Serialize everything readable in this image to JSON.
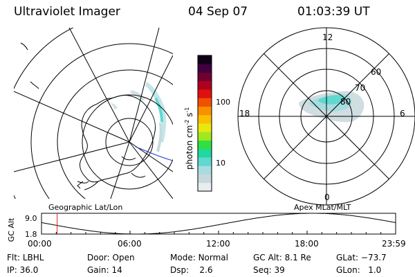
{
  "header": {
    "title": "Ultraviolet Imager",
    "date": "04 Sep 07",
    "time": "01:03:39 UT"
  },
  "colorbar": {
    "axis_label": "photon cm",
    "axis_exp1": "-2",
    "axis_mid": "s",
    "axis_exp2": "-1",
    "ticks": [
      {
        "value": 100,
        "label": "100"
      },
      {
        "value": 10,
        "label": "10"
      }
    ],
    "colors": [
      "#e8eef0",
      "#c8d8dc",
      "#a8dce0",
      "#60d8d0",
      "#20d8a0",
      "#30e040",
      "#a0e820",
      "#e8e810",
      "#f8c000",
      "#f89000",
      "#f05000",
      "#e01010",
      "#b00020",
      "#700030",
      "#400040",
      "#100018"
    ]
  },
  "geo_map": {
    "label": "Geographic Lat/Lon"
  },
  "polar_plot": {
    "label": "Apex MLat/MLT",
    "mlt_labels": [
      "12",
      "18",
      "6",
      "0"
    ],
    "mlat_labels": [
      "60",
      "70",
      "80"
    ]
  },
  "timeline": {
    "axis_label_top": "GC Alt",
    "ytick_top": "9.0",
    "ytick_bottom": "1.8",
    "ylim": [
      1.8,
      9.0
    ],
    "current_time_hours": 1.06,
    "xticks": [
      "00:00",
      "06:00",
      "12:00",
      "18:00",
      "23:59"
    ]
  },
  "info_row1": [
    {
      "label": "Flt:",
      "value": "LBHL"
    },
    {
      "label": "Door:",
      "value": "Open"
    },
    {
      "label": "Mode:",
      "value": "Normal"
    },
    {
      "label": "GC Alt:",
      "value": "8.1 Re"
    },
    {
      "label": "GLat:",
      "value": "−73.7"
    }
  ],
  "info_row2": [
    {
      "label": "IP:",
      "value": "36.0"
    },
    {
      "label": "Gain:",
      "value": "14"
    },
    {
      "label": "Dsp:",
      "value": "2.6"
    },
    {
      "label": "Seq:",
      "value": "39"
    },
    {
      "label": "GLon:",
      "value": "1.0"
    }
  ]
}
